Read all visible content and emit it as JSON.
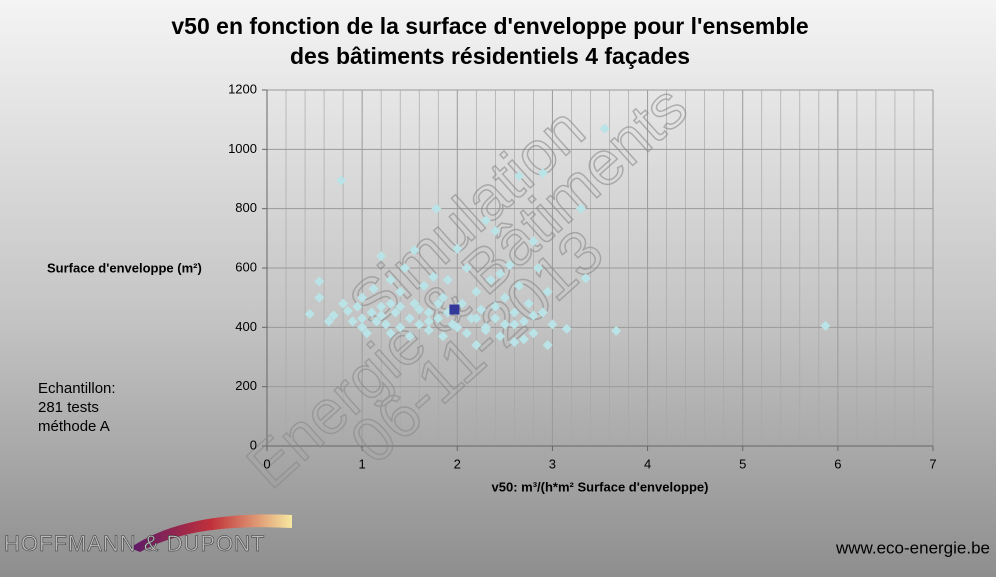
{
  "chart_data": {
    "type": "scatter",
    "title": [
      "v50 en fonction de la surface d'enveloppe pour l'ensemble",
      "des bâtiments résidentiels 4 façades"
    ],
    "xlabel": "v50: m³/(h*m² Surface d'enveloppe)",
    "ylabel": "Surface d'enveloppe (m²)",
    "annotation": [
      "Echantillon:",
      "281 tests",
      "méthode A"
    ],
    "watermark": [
      "Simulation",
      "Energie & Bâtiments",
      "06-11-2013"
    ],
    "xlim": [
      0,
      7
    ],
    "xticks": [
      0,
      1,
      2,
      3,
      4,
      5,
      6,
      7
    ],
    "ylim": [
      0,
      1200
    ],
    "yticks": [
      0,
      200,
      400,
      600,
      800,
      1000,
      1200
    ],
    "grid": true,
    "points": {
      "color": "#b9e3e6",
      "x": [
        0.45,
        0.55,
        0.55,
        0.65,
        0.7,
        0.78,
        0.8,
        0.85,
        0.9,
        0.95,
        1.0,
        1.0,
        1.05,
        1.1,
        1.12,
        1.15,
        1.2,
        1.2,
        1.25,
        1.3,
        1.3,
        1.35,
        1.4,
        1.4,
        1.45,
        1.5,
        1.5,
        1.55,
        1.55,
        1.6,
        1.65,
        1.7,
        1.7,
        1.75,
        1.78,
        1.8,
        1.85,
        1.85,
        1.9,
        1.95,
        2.0,
        2.05,
        2.1,
        2.1,
        2.15,
        2.2,
        2.2,
        2.25,
        2.3,
        2.3,
        2.35,
        2.4,
        2.4,
        2.45,
        2.5,
        2.5,
        2.55,
        2.6,
        2.6,
        2.65,
        2.65,
        2.7,
        2.75,
        2.8,
        2.8,
        2.85,
        2.9,
        2.9,
        2.95,
        2.95,
        3.0,
        3.15,
        3.3,
        3.35,
        3.55,
        3.67,
        5.87,
        1.0,
        1.2,
        1.4,
        1.6,
        1.8,
        2.0,
        2.2,
        2.4,
        2.6,
        2.8,
        1.3,
        1.7,
        2.3,
        2.7,
        1.9,
        2.45
      ],
      "y": [
        445,
        555,
        500,
        420,
        440,
        895,
        480,
        455,
        420,
        470,
        400,
        500,
        380,
        450,
        530,
        420,
        640,
        470,
        410,
        560,
        380,
        450,
        520,
        400,
        600,
        430,
        370,
        660,
        480,
        410,
        540,
        450,
        390,
        570,
        800,
        430,
        500,
        370,
        450,
        410,
        665,
        480,
        380,
        600,
        430,
        520,
        340,
        460,
        760,
        400,
        560,
        725,
        430,
        370,
        500,
        410,
        610,
        450,
        350,
        910,
        540,
        420,
        480,
        690,
        380,
        600,
        920,
        450,
        340,
        520,
        410,
        395,
        800,
        565,
        1070,
        388,
        405,
        430,
        440,
        470,
        460,
        480,
        400,
        430,
        470,
        410,
        440,
        480,
        420,
        390,
        360,
        560,
        580
      ]
    },
    "mean": {
      "color": "#33399a",
      "x": [
        1.97
      ],
      "y": [
        460
      ]
    },
    "logo": "HOFFMANN & DUPONT",
    "footer": "www.eco-energie.be"
  }
}
